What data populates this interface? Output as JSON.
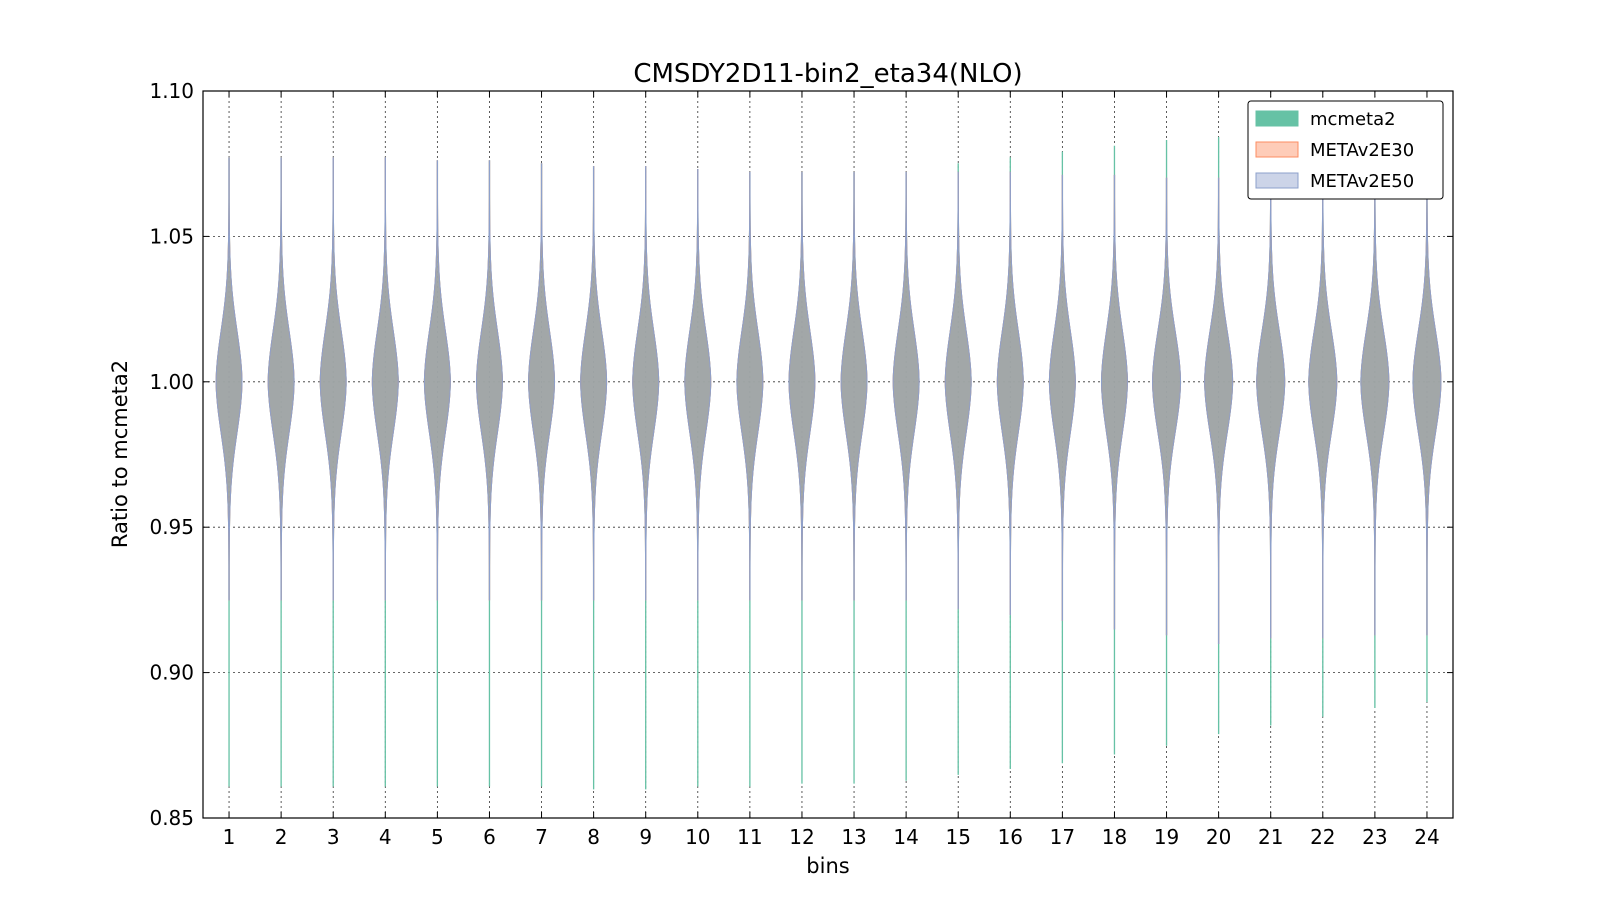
{
  "chart_data": {
    "type": "violin",
    "title": "CMSDY2D11-bin2_eta34(NLO)",
    "xlabel": "bins",
    "ylabel": "Ratio to mcmeta2",
    "ylim": [
      0.85,
      1.1
    ],
    "yticks": [
      "0.85",
      "0.90",
      "0.95",
      "1.00",
      "1.05",
      "1.10"
    ],
    "categories": [
      "1",
      "2",
      "3",
      "4",
      "5",
      "6",
      "7",
      "8",
      "9",
      "10",
      "11",
      "12",
      "13",
      "14",
      "15",
      "16",
      "17",
      "18",
      "19",
      "20",
      "21",
      "22",
      "23",
      "24"
    ],
    "grid": true,
    "legend_position": "top-right",
    "series": [
      {
        "name": "mcmeta2",
        "color": "#66c2a5",
        "center": [
          1.0,
          1.0,
          1.0,
          1.0,
          1.0,
          1.0,
          1.0,
          1.0,
          1.0,
          1.0,
          1.0,
          1.0,
          1.0,
          1.0,
          1.0,
          1.0,
          1.0,
          1.0,
          1.0,
          1.0,
          1.0,
          1.0,
          1.0,
          1.0
        ],
        "min": [
          0.861,
          0.861,
          0.861,
          0.861,
          0.861,
          0.861,
          0.861,
          0.86,
          0.86,
          0.861,
          0.861,
          0.862,
          0.862,
          0.863,
          0.865,
          0.867,
          0.869,
          0.872,
          0.875,
          0.879,
          0.882,
          0.885,
          0.888,
          0.89
        ],
        "max": [
          1.077,
          1.077,
          1.077,
          1.077,
          1.076,
          1.076,
          1.075,
          1.074,
          1.074,
          1.073,
          1.072,
          1.072,
          1.072,
          1.072,
          1.075,
          1.077,
          1.079,
          1.081,
          1.083,
          1.084,
          1.079,
          1.077,
          1.075,
          1.073
        ],
        "width": [
          0.5,
          0.5,
          0.5,
          0.5,
          0.5,
          0.5,
          0.5,
          0.5,
          0.5,
          0.5,
          0.5,
          0.5,
          0.5,
          0.5,
          0.5,
          0.5,
          0.5,
          0.5,
          0.54,
          0.54,
          0.54,
          0.54,
          0.54,
          0.54
        ]
      },
      {
        "name": "METAv2E30",
        "color": "#fc8d62",
        "center": [
          1.0,
          1.0,
          1.0,
          1.0,
          1.0,
          1.0,
          1.0,
          1.0,
          1.0,
          1.0,
          1.0,
          1.0,
          1.0,
          1.0,
          1.0,
          1.0,
          1.0,
          1.0,
          1.0,
          1.0,
          1.0,
          1.0,
          1.0,
          1.0
        ],
        "min": [
          0.925,
          0.925,
          0.925,
          0.925,
          0.925,
          0.925,
          0.925,
          0.925,
          0.925,
          0.925,
          0.925,
          0.925,
          0.925,
          0.925,
          0.922,
          0.92,
          0.918,
          0.915,
          0.913,
          0.91,
          0.912,
          0.912,
          0.913,
          0.913
        ],
        "max": [
          1.077,
          1.077,
          1.077,
          1.077,
          1.076,
          1.076,
          1.075,
          1.074,
          1.074,
          1.073,
          1.072,
          1.072,
          1.072,
          1.072,
          1.072,
          1.072,
          1.071,
          1.071,
          1.07,
          1.07,
          1.07,
          1.07,
          1.07,
          1.07
        ],
        "width": [
          0.5,
          0.5,
          0.5,
          0.5,
          0.5,
          0.5,
          0.5,
          0.5,
          0.5,
          0.5,
          0.5,
          0.5,
          0.5,
          0.5,
          0.5,
          0.5,
          0.5,
          0.5,
          0.54,
          0.54,
          0.54,
          0.54,
          0.54,
          0.54
        ]
      },
      {
        "name": "METAv2E50",
        "color": "#8da0cb",
        "center": [
          1.0,
          1.0,
          1.0,
          1.0,
          1.0,
          1.0,
          1.0,
          1.0,
          1.0,
          1.0,
          1.0,
          1.0,
          1.0,
          1.0,
          1.0,
          1.0,
          1.0,
          1.0,
          1.0,
          1.0,
          1.0,
          1.0,
          1.0,
          1.0
        ],
        "min": [
          0.925,
          0.925,
          0.925,
          0.925,
          0.925,
          0.925,
          0.925,
          0.925,
          0.925,
          0.925,
          0.925,
          0.925,
          0.925,
          0.925,
          0.922,
          0.92,
          0.918,
          0.915,
          0.913,
          0.91,
          0.912,
          0.912,
          0.913,
          0.913
        ],
        "max": [
          1.077,
          1.077,
          1.077,
          1.077,
          1.076,
          1.076,
          1.075,
          1.074,
          1.074,
          1.073,
          1.072,
          1.072,
          1.072,
          1.072,
          1.072,
          1.072,
          1.071,
          1.071,
          1.07,
          1.07,
          1.07,
          1.07,
          1.07,
          1.07
        ],
        "width": [
          0.5,
          0.5,
          0.5,
          0.5,
          0.5,
          0.5,
          0.5,
          0.5,
          0.5,
          0.5,
          0.5,
          0.5,
          0.5,
          0.5,
          0.5,
          0.5,
          0.5,
          0.5,
          0.54,
          0.54,
          0.54,
          0.54,
          0.54,
          0.54
        ]
      }
    ]
  }
}
